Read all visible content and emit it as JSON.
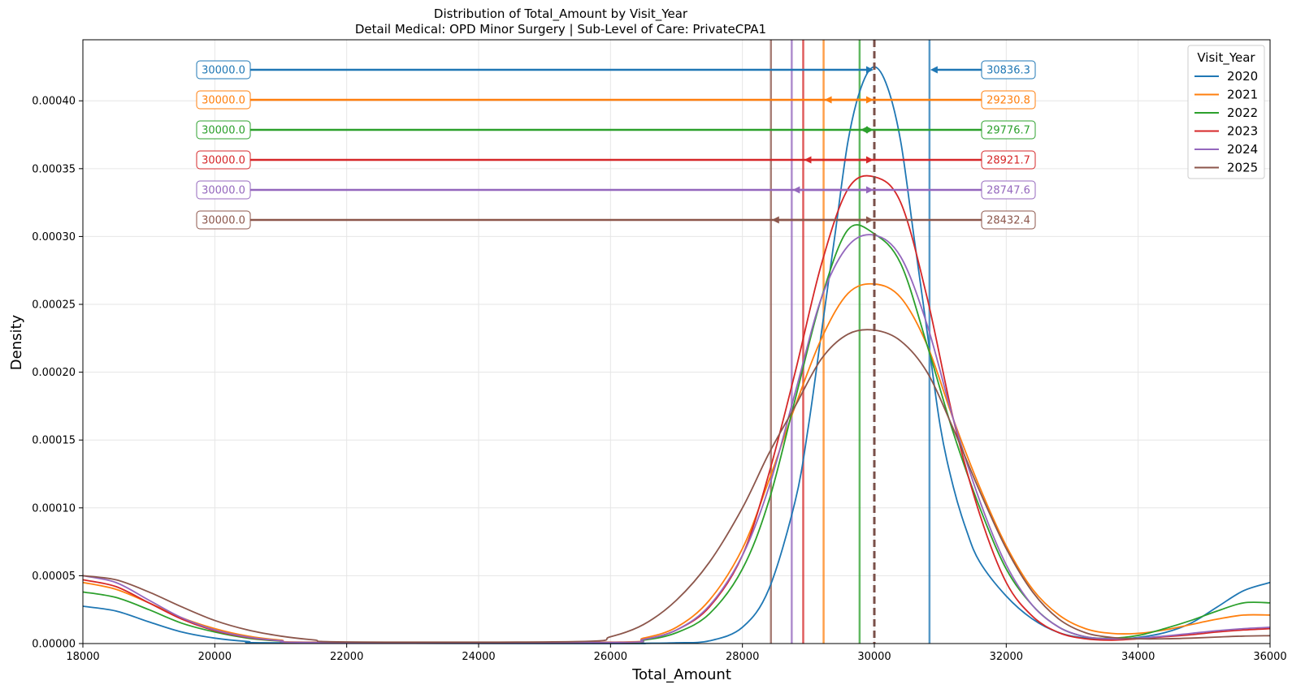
{
  "chart_data": {
    "type": "line",
    "title": "Distribution of Total_Amount by Visit_Year",
    "subtitle": "Detail Medical: OPD Minor Surgery | Sub-Level of Care: PrivateCPA1",
    "xlabel": "Total_Amount",
    "ylabel": "Density",
    "xlim": [
      18000,
      36000
    ],
    "ylim": [
      0,
      0.000445
    ],
    "x_ticks": [
      "18000",
      "20000",
      "22000",
      "24000",
      "26000",
      "28000",
      "30000",
      "32000",
      "34000",
      "36000"
    ],
    "y_ticks": [
      "0.00000",
      "0.00005",
      "0.00010",
      "0.00015",
      "0.00020",
      "0.00025",
      "0.00030",
      "0.00035",
      "0.00040"
    ],
    "grid": true,
    "legend": {
      "title": "Visit_Year",
      "placement": "top-right"
    },
    "series": [
      {
        "name": "2020",
        "color": "#1f77b4",
        "median": "30000.0",
        "mean": "30836.3",
        "x": [
          18000,
          18500,
          19000,
          19500,
          20000,
          20500,
          21000,
          26000,
          26500,
          27000,
          27500,
          28000,
          28400,
          28800,
          29000,
          29200,
          29400,
          29600,
          29800,
          30000,
          30200,
          30400,
          30600,
          30800,
          31000,
          31200,
          31400,
          31600,
          32000,
          32400,
          32800,
          33200,
          33600,
          34000,
          34400,
          34800,
          35200,
          35600,
          36000
        ],
        "y": [
          2.75e-05,
          2.4e-05,
          1.6e-05,
          8.5e-06,
          4e-06,
          1.5e-06,
          5e-07,
          0,
          2e-07,
          6e-07,
          2e-06,
          1.2e-05,
          4e-05,
          0.000105,
          0.00016,
          0.00023,
          0.0003,
          0.00037,
          0.00041,
          0.000425,
          0.00041,
          0.00037,
          0.0003,
          0.00023,
          0.00016,
          0.000115,
          8.3e-05,
          6e-05,
          3.5e-05,
          1.8e-05,
          8e-06,
          4e-06,
          3e-06,
          4.5e-06,
          8e-06,
          1.5e-05,
          2.7e-05,
          3.9e-05,
          4.5e-05
        ]
      },
      {
        "name": "2021",
        "color": "#ff7f0e",
        "median": "30000.0",
        "mean": "29230.8",
        "x": [
          18000,
          18500,
          19000,
          19500,
          20000,
          20500,
          21000,
          21500,
          26000,
          26500,
          27000,
          27500,
          28000,
          28400,
          28800,
          29200,
          29600,
          30000,
          30400,
          30800,
          31200,
          31600,
          32000,
          32400,
          32800,
          33200,
          33600,
          34000,
          34400,
          34800,
          35200,
          35600,
          36000
        ],
        "y": [
          4.5e-05,
          4e-05,
          3e-05,
          1.9e-05,
          1.1e-05,
          5.5e-06,
          2.5e-06,
          1e-06,
          1e-06,
          4e-06,
          1.2e-05,
          3.2e-05,
          7e-05,
          0.00012,
          0.000175,
          0.000225,
          0.000258,
          0.000265,
          0.000255,
          0.00022,
          0.000165,
          0.000115,
          7.2e-05,
          4e-05,
          2.1e-05,
          1.1e-05,
          7.5e-06,
          7.5e-06,
          1e-05,
          1.4e-05,
          1.8e-05,
          2.1e-05,
          2.1e-05
        ]
      },
      {
        "name": "2022",
        "color": "#2ca02c",
        "median": "30000.0",
        "mean": "29776.7",
        "x": [
          18000,
          18500,
          19000,
          19500,
          20000,
          20500,
          21000,
          21500,
          26000,
          26500,
          27000,
          27500,
          28000,
          28400,
          28800,
          29200,
          29600,
          30000,
          30400,
          30800,
          31200,
          31600,
          32000,
          32400,
          32800,
          33200,
          33600,
          34000,
          34400,
          34800,
          35200,
          35600,
          36000
        ],
        "y": [
          3.8e-05,
          3.4e-05,
          2.5e-05,
          1.5e-05,
          8.5e-06,
          4e-06,
          1.8e-06,
          7e-07,
          7e-07,
          2.5e-06,
          8e-06,
          2.2e-05,
          5.5e-05,
          0.000105,
          0.00018,
          0.000255,
          0.000305,
          0.000302,
          0.00028,
          0.00022,
          0.000155,
          0.0001,
          5.5e-05,
          2.8e-05,
          1.2e-05,
          5e-06,
          4e-06,
          6e-06,
          1.1e-05,
          1.7e-05,
          2.4e-05,
          3e-05,
          3e-05
        ]
      },
      {
        "name": "2023",
        "color": "#d62728",
        "median": "30000.0",
        "mean": "28921.7",
        "x": [
          18000,
          18500,
          19000,
          19500,
          20000,
          20500,
          21000,
          21500,
          26000,
          26500,
          27000,
          27500,
          28000,
          28400,
          28800,
          29200,
          29600,
          30000,
          30400,
          30800,
          31200,
          31600,
          32000,
          32400,
          32800,
          33200,
          33600,
          34000,
          34400,
          34800,
          35200,
          35600,
          36000
        ],
        "y": [
          4.7e-05,
          4.2e-05,
          3e-05,
          1.8e-05,
          9.5e-06,
          4.5e-06,
          2e-06,
          8e-07,
          8e-07,
          3e-06,
          1e-05,
          2.7e-05,
          6.5e-05,
          0.000125,
          0.0002,
          0.00028,
          0.000335,
          0.000344,
          0.000325,
          0.000255,
          0.000165,
          9.5e-05,
          4.5e-05,
          2e-05,
          8e-06,
          3.5e-06,
          2.5e-06,
          3.5e-06,
          5e-06,
          6.5e-06,
          8.5e-06,
          1e-05,
          1.1e-05
        ]
      },
      {
        "name": "2024",
        "color": "#9467bd",
        "median": "30000.0",
        "mean": "28747.6",
        "x": [
          18000,
          18500,
          19000,
          19500,
          20000,
          20500,
          21000,
          21500,
          26000,
          26500,
          27000,
          27500,
          28000,
          28400,
          28800,
          29200,
          29600,
          30000,
          30400,
          30800,
          31200,
          31600,
          32000,
          32400,
          32800,
          33200,
          33600,
          34000,
          34400,
          34800,
          35200,
          35600,
          36000
        ],
        "y": [
          5e-05,
          4.5e-05,
          3.2e-05,
          1.9e-05,
          1e-05,
          4.8e-06,
          2.1e-06,
          8e-07,
          8e-07,
          3e-06,
          1e-05,
          2.8e-05,
          6.5e-05,
          0.000115,
          0.000185,
          0.000255,
          0.000293,
          0.000301,
          0.000285,
          0.000235,
          0.000165,
          0.000105,
          5.8e-05,
          2.8e-05,
          1.2e-05,
          5e-06,
          3.5e-06,
          4e-06,
          5.5e-06,
          7.5e-06,
          9.5e-06,
          1.1e-05,
          1.2e-05
        ]
      },
      {
        "name": "2025",
        "color": "#8c564b",
        "median": "30000.0",
        "mean": "28432.4",
        "x": [
          18000,
          18500,
          19000,
          19500,
          20000,
          20500,
          21000,
          21500,
          22000,
          25500,
          26000,
          26500,
          27000,
          27500,
          28000,
          28400,
          28800,
          29200,
          29600,
          30000,
          30400,
          30800,
          31200,
          31600,
          32000,
          32400,
          32800,
          33200,
          33600,
          34000,
          34400,
          34800,
          35200,
          35600,
          36000
        ],
        "y": [
          5e-05,
          4.7e-05,
          3.8e-05,
          2.7e-05,
          1.7e-05,
          1e-05,
          5.5e-06,
          2.7e-06,
          1.2e-06,
          1.5e-06,
          5e-06,
          1.4e-05,
          3.2e-05,
          6e-05,
          0.0001,
          0.00014,
          0.000175,
          0.00021,
          0.000228,
          0.000231,
          0.000223,
          0.0002,
          0.000158,
          0.000112,
          7e-05,
          3.8e-05,
          1.8e-05,
          8e-06,
          4.5e-06,
          3.5e-06,
          3.5e-06,
          4e-06,
          4.8e-06,
          5.5e-06,
          5.8e-06
        ]
      }
    ]
  }
}
